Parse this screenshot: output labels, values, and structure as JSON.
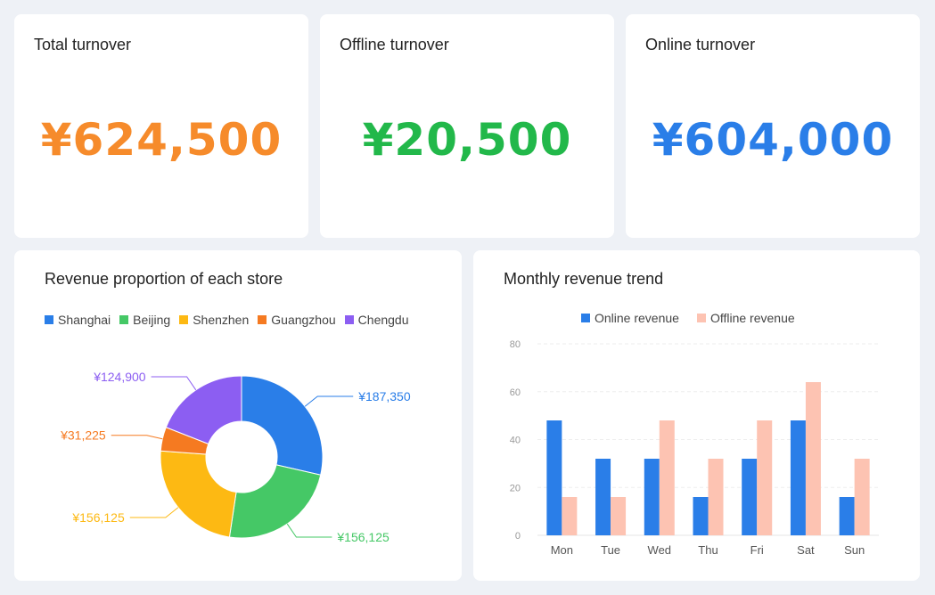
{
  "kpis": [
    {
      "title": "Total turnover",
      "value": "¥624,500",
      "color": "#f68b2b"
    },
    {
      "title": "Offline turnover",
      "value": "¥20,500",
      "color": "#22b84a"
    },
    {
      "title": "Online turnover",
      "value": "¥604,000",
      "color": "#2a7ee8"
    }
  ],
  "chart_data": [
    {
      "type": "pie",
      "title": "Revenue proportion of each store",
      "legend_position": "top",
      "categories": [
        "Shanghai",
        "Beijing",
        "Shenzhen",
        "Guangzhou",
        "Chengdu"
      ],
      "values": [
        187350,
        156125,
        156125,
        31225,
        124900
      ],
      "labels": [
        "¥187,350",
        "¥156,125",
        "¥156,125",
        "¥31,225",
        "¥124,900"
      ],
      "colors": [
        "#2a7ee8",
        "#45c866",
        "#fdb913",
        "#f57a21",
        "#8c5ef2"
      ]
    },
    {
      "type": "bar",
      "title": "Monthly revenue trend",
      "legend_position": "top",
      "categories": [
        "Mon",
        "Tue",
        "Wed",
        "Thu",
        "Fri",
        "Sat",
        "Sun"
      ],
      "series": [
        {
          "name": "Online revenue",
          "values": [
            48,
            32,
            32,
            16,
            32,
            48,
            16
          ],
          "color": "#2a7ee8"
        },
        {
          "name": "Offline revenue",
          "values": [
            16,
            16,
            48,
            32,
            48,
            64,
            32
          ],
          "color": "#fdc3b2"
        }
      ],
      "ylim": [
        0,
        80
      ],
      "yticks": [
        "0",
        "20",
        "40",
        "60",
        "80"
      ],
      "grid": true
    }
  ]
}
